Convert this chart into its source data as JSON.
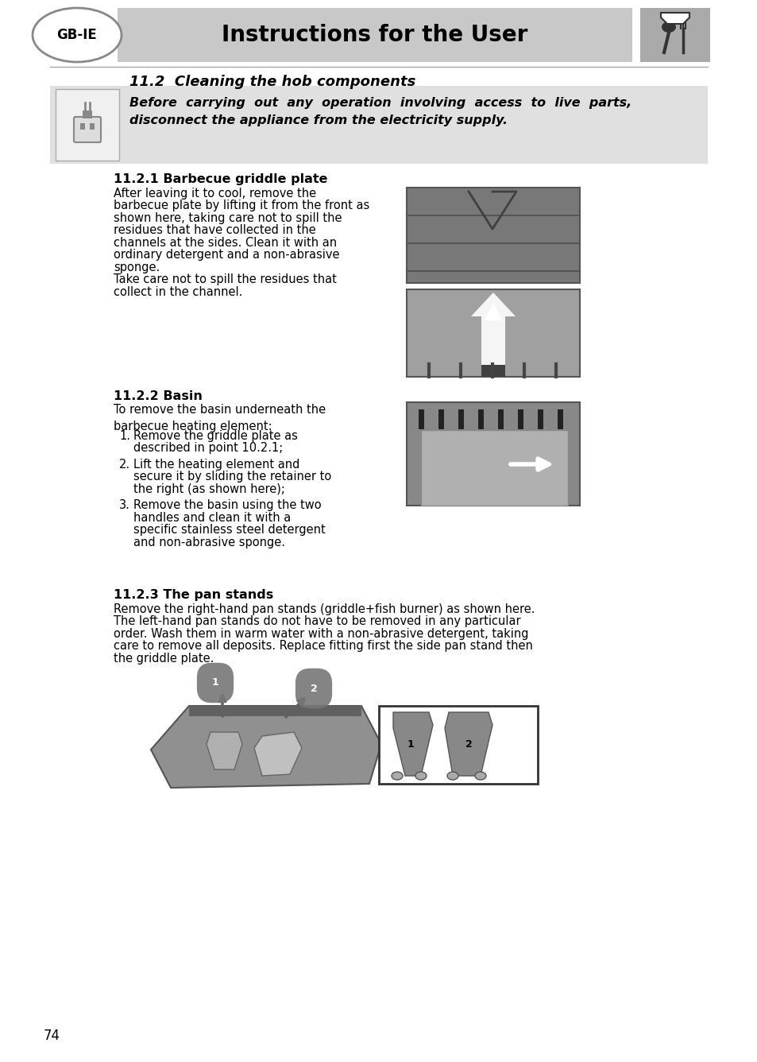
{
  "page_bg": "#ffffff",
  "header_bg": "#c8c8c8",
  "header_title": "Instructions for the User",
  "header_title_fontsize": 20,
  "gbie_label": "GB-IE",
  "section_title": "11.2  Cleaning the hob components",
  "warning_bg": "#e0e0e0",
  "warning_line1": "Before  carrying  out  any  operation  involving  access  to  live  parts,",
  "warning_line2": "disconnect the appliance from the electricity supply.",
  "sub1_title": "11.2.1 Barbecue griddle plate",
  "sub1_body": "After leaving it to cool, remove the\nbarbecue plate by lifting it from the front as\nshown here, taking care not to spill the\nresidues that have collected in the\nchannels at the sides. Clean it with an\nordinary detergent and a non-abrasive\nsponge.\nTake care not to spill the residues that\ncollect in the channel.",
  "sub2_title": "11.2.2 Basin",
  "sub2_pre": "To remove the basin underneath the\nbarbecue heating element:",
  "sub2_list": [
    "Remove the griddle plate as\n      described in point 10.2.1;",
    "Lift the heating element and\n      secure it by sliding the retainer to\n      the right (as shown here);",
    "Remove the basin using the two\n      handles and clean it with a\n      specific stainless steel detergent\n      and non-abrasive sponge."
  ],
  "sub3_title": "11.2.3 The pan stands",
  "sub3_body": "Remove the right-hand pan stands (griddle+fish burner) as shown here.\nThe left-hand pan stands do not have to be removed in any particular\norder. Wash them in warm water with a non-abrasive detergent, taking\ncare to remove all deposits. Replace fitting first the side pan stand then\nthe griddle plate.",
  "page_number": "74",
  "body_fontsize": 10.5,
  "img1_color": "#909090",
  "img2_color": "#a8a8a8",
  "img3_color": "#888888",
  "arrow_color_up": "#b0b0b0",
  "arrow_color_right": "#ffffff"
}
